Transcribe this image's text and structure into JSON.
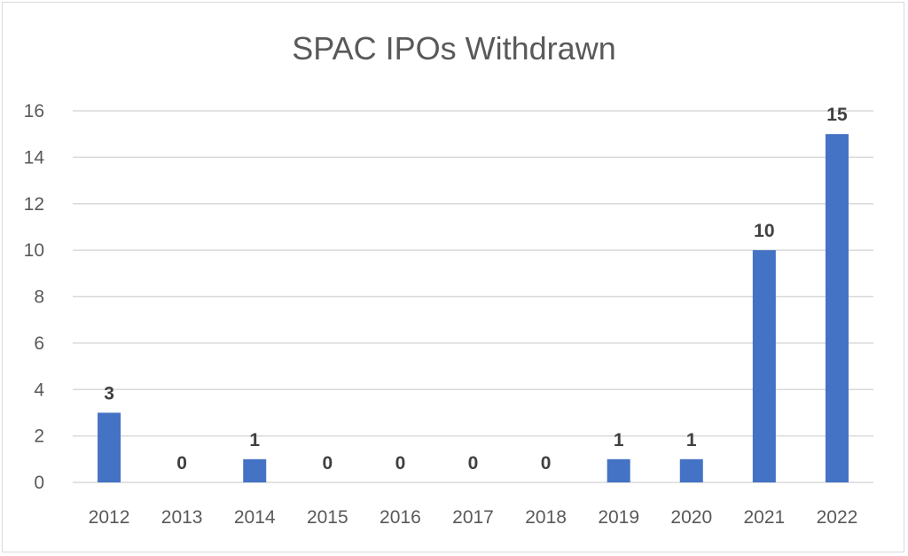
{
  "chart_data": {
    "type": "bar",
    "title": "SPAC IPOs Withdrawn",
    "categories": [
      "2012",
      "2013",
      "2014",
      "2015",
      "2016",
      "2017",
      "2018",
      "2019",
      "2020",
      "2021",
      "2022"
    ],
    "series": [
      {
        "values": [
          3,
          0,
          1,
          0,
          0,
          0,
          0,
          1,
          1,
          10,
          15
        ]
      }
    ],
    "ylim": [
      0,
      16
    ],
    "yticks": [
      0,
      2,
      4,
      6,
      8,
      10,
      12,
      14,
      16
    ],
    "grid": true,
    "data_labels": true,
    "colors": {
      "bar": "#4472C4",
      "grid": "#d9d9d9",
      "axis_text": "#595959",
      "label_text": "#404040"
    }
  }
}
